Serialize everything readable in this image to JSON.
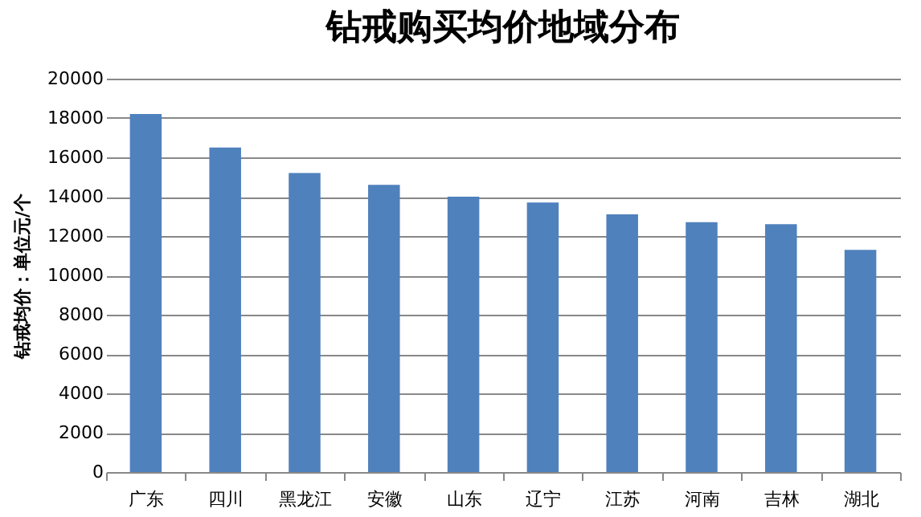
{
  "chart_data": {
    "type": "bar",
    "title": "钻戒购买均价地域分布",
    "ylabel": "钻戒均价：单位元/个",
    "categories": [
      "广东",
      "四川",
      "黑龙江",
      "安徽",
      "山东",
      "辽宁",
      "江苏",
      "河南",
      "吉林",
      "湖北"
    ],
    "values": [
      18200,
      16500,
      15200,
      14600,
      14000,
      13700,
      13100,
      12700,
      12600,
      11300
    ],
    "color": "#4f81bd",
    "ylim": [
      0,
      20000
    ],
    "yticks": [
      0,
      2000,
      4000,
      6000,
      8000,
      10000,
      12000,
      14000,
      16000,
      18000,
      20000
    ],
    "grid": "y"
  }
}
